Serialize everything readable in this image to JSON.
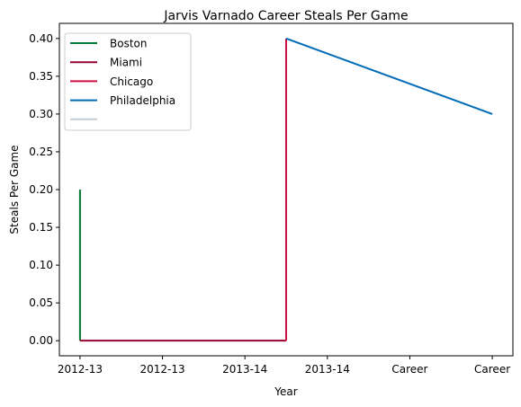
{
  "chart_data": {
    "type": "line",
    "title": "Jarvis Varnado Career Steals Per Game",
    "xlabel": "Year",
    "ylabel": "Steals Per Game",
    "x_tick_labels": [
      "2012-13",
      "2012-13",
      "2013-14",
      "2013-14",
      "Career",
      "Career"
    ],
    "x_ticks": [
      0,
      1,
      2,
      3,
      4,
      5
    ],
    "xlim": [
      -0.25,
      5.25
    ],
    "y_ticks": [
      0.0,
      0.05,
      0.1,
      0.15,
      0.2,
      0.25,
      0.3,
      0.35,
      0.4
    ],
    "y_tick_labels": [
      "0.00",
      "0.05",
      "0.10",
      "0.15",
      "0.20",
      "0.25",
      "0.30",
      "0.35",
      "0.40"
    ],
    "ylim": [
      -0.02,
      0.42
    ],
    "grid": false,
    "legend_position": "top-left",
    "series": [
      {
        "name": "Boston",
        "color": "#007a33",
        "x": [
          0,
          0
        ],
        "y": [
          0.2,
          0.0
        ]
      },
      {
        "name": "Miami",
        "color": "#98002e",
        "x": [
          0,
          2.5
        ],
        "y": [
          0.0,
          0.0
        ]
      },
      {
        "name": "Chicago",
        "color": "#ce1141",
        "x": [
          2.5,
          2.5
        ],
        "y": [
          0.0,
          0.4
        ]
      },
      {
        "name": "Philadelphia",
        "color": "#006bb6",
        "x": [
          2.5,
          5
        ],
        "y": [
          0.4,
          0.3
        ]
      },
      {
        "name": "",
        "color": "#c4ced4",
        "x": [],
        "y": []
      }
    ]
  }
}
